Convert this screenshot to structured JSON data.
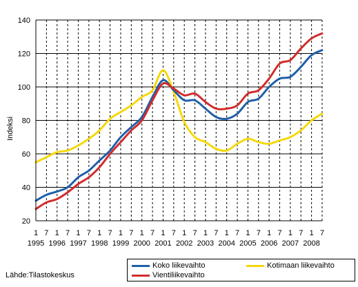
{
  "chart_data": {
    "type": "line",
    "title": "",
    "xlabel": "",
    "ylabel": "Indeksi",
    "ylim": [
      20,
      140
    ],
    "yticks": [
      20,
      40,
      60,
      80,
      100,
      120,
      140
    ],
    "grid": "horizontal solid lines, vertical dashed lines at each half-year",
    "years": [
      "1995",
      "1996",
      "1997",
      "1998",
      "1999",
      "2000",
      "2001",
      "2002",
      "2003",
      "2004",
      "2005",
      "2006",
      "2007",
      "2008"
    ],
    "month_ticks": [
      "1",
      "7"
    ],
    "x_start": "1995-01",
    "x_end": "2008-07",
    "series": [
      {
        "name": "Koko liikevaihto",
        "color": "#1f5fa8",
        "points": [
          [
            "1995-01",
            32
          ],
          [
            "1995-07",
            35.5
          ],
          [
            "1996-01",
            37.5
          ],
          [
            "1996-07",
            40
          ],
          [
            "1997-01",
            46
          ],
          [
            "1997-07",
            50
          ],
          [
            "1998-01",
            56
          ],
          [
            "1998-07",
            62
          ],
          [
            "1999-01",
            70
          ],
          [
            "1999-07",
            76
          ],
          [
            "2000-01",
            82
          ],
          [
            "2000-07",
            94
          ],
          [
            "2001-01",
            104
          ],
          [
            "2001-07",
            98
          ],
          [
            "2002-01",
            92
          ],
          [
            "2002-07",
            92
          ],
          [
            "2003-01",
            87
          ],
          [
            "2003-07",
            82
          ],
          [
            "2004-01",
            81
          ],
          [
            "2004-07",
            84
          ],
          [
            "2005-01",
            91
          ],
          [
            "2005-07",
            93
          ],
          [
            "2006-01",
            100
          ],
          [
            "2006-07",
            105
          ],
          [
            "2007-01",
            106
          ],
          [
            "2007-07",
            112
          ],
          [
            "2008-01",
            119
          ],
          [
            "2008-07",
            122
          ]
        ]
      },
      {
        "name": "Vientiliikevaihto",
        "color": "#d22b2b",
        "points": [
          [
            "1995-01",
            27
          ],
          [
            "1995-07",
            31
          ],
          [
            "1996-01",
            33
          ],
          [
            "1996-07",
            37
          ],
          [
            "1997-01",
            42
          ],
          [
            "1997-07",
            46
          ],
          [
            "1998-01",
            52
          ],
          [
            "1998-07",
            60
          ],
          [
            "1999-01",
            67
          ],
          [
            "1999-07",
            74
          ],
          [
            "2000-01",
            80
          ],
          [
            "2000-07",
            92
          ],
          [
            "2001-01",
            102
          ],
          [
            "2001-07",
            99
          ],
          [
            "2002-01",
            95
          ],
          [
            "2002-07",
            96
          ],
          [
            "2003-01",
            91
          ],
          [
            "2003-07",
            87
          ],
          [
            "2004-01",
            87
          ],
          [
            "2004-07",
            89
          ],
          [
            "2005-01",
            96
          ],
          [
            "2005-07",
            98
          ],
          [
            "2006-01",
            105
          ],
          [
            "2006-07",
            114
          ],
          [
            "2007-01",
            116
          ],
          [
            "2007-07",
            123
          ],
          [
            "2008-01",
            129
          ],
          [
            "2008-07",
            132
          ]
        ]
      },
      {
        "name": "Kotimaan liikevaihto",
        "color": "#f5d80a",
        "points": [
          [
            "1995-01",
            55
          ],
          [
            "1995-07",
            58
          ],
          [
            "1996-01",
            61
          ],
          [
            "1996-07",
            62
          ],
          [
            "1997-01",
            65
          ],
          [
            "1997-07",
            69
          ],
          [
            "1998-01",
            74
          ],
          [
            "1998-07",
            81
          ],
          [
            "1999-01",
            85
          ],
          [
            "1999-07",
            89
          ],
          [
            "2000-01",
            94
          ],
          [
            "2000-07",
            98
          ],
          [
            "2001-01",
            110
          ],
          [
            "2001-07",
            97
          ],
          [
            "2002-01",
            79
          ],
          [
            "2002-07",
            70
          ],
          [
            "2003-01",
            67
          ],
          [
            "2003-07",
            63
          ],
          [
            "2004-01",
            62
          ],
          [
            "2004-07",
            66
          ],
          [
            "2005-01",
            69
          ],
          [
            "2005-07",
            67
          ],
          [
            "2006-01",
            66
          ],
          [
            "2006-07",
            68
          ],
          [
            "2007-01",
            70
          ],
          [
            "2007-07",
            74
          ],
          [
            "2008-01",
            80
          ],
          [
            "2008-07",
            84
          ]
        ]
      }
    ]
  },
  "source": "Lähde:Tilastokeskus"
}
